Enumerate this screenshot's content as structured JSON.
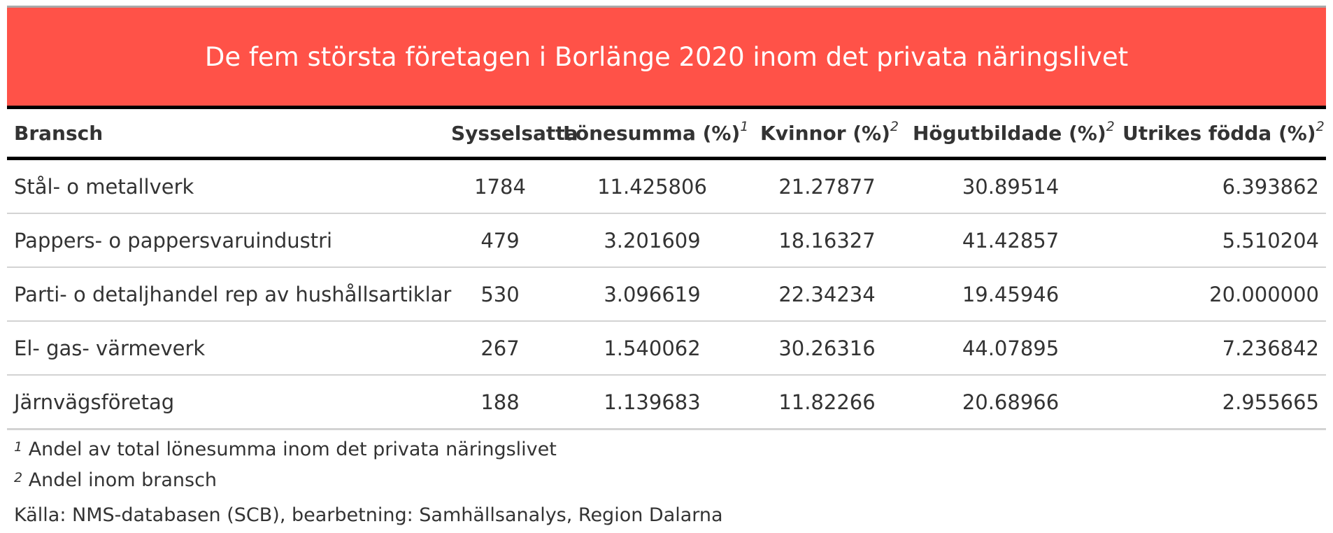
{
  "title": "De fem största företagen i Borlänge 2020 inom det privata näringslivet",
  "colors": {
    "title_background": "#ff5248",
    "title_text": "#ffffff",
    "header_rule": "#000000",
    "row_rule": "#d3d3d3",
    "body_text": "#333333"
  },
  "table": {
    "columns": [
      {
        "label": "Bransch",
        "footnote": ""
      },
      {
        "label": "Sysselsatta",
        "footnote": ""
      },
      {
        "label": "Lönesumma (%)",
        "footnote": "1"
      },
      {
        "label": "Kvinnor (%)",
        "footnote": "2"
      },
      {
        "label": "Högutbildade (%)",
        "footnote": "2"
      },
      {
        "label": "Utrikes födda (%)",
        "footnote": "2"
      }
    ],
    "rows": [
      [
        "Stål- o metallverk",
        "1784",
        "11.425806",
        "21.27877",
        "30.89514",
        "6.393862"
      ],
      [
        "Pappers- o pappersvaruindustri",
        "479",
        "3.201609",
        "18.16327",
        "41.42857",
        "5.510204"
      ],
      [
        "Parti- o detaljhandel rep av hushållsartiklar",
        "530",
        "3.096619",
        "22.34234",
        "19.45946",
        "20.000000"
      ],
      [
        "El- gas- värmeverk",
        "267",
        "1.540062",
        "30.26316",
        "44.07895",
        "7.236842"
      ],
      [
        "Järnvägsföretag",
        "188",
        "1.139683",
        "11.82266",
        "20.68966",
        "2.955665"
      ]
    ]
  },
  "footnotes": [
    {
      "mark": "1",
      "text": "Andel av total lönesumma inom det privata näringslivet"
    },
    {
      "mark": "2",
      "text": "Andel inom bransch"
    }
  ],
  "source": "Källa: NMS-databasen (SCB), bearbetning: Samhällsanalys, Region Dalarna"
}
